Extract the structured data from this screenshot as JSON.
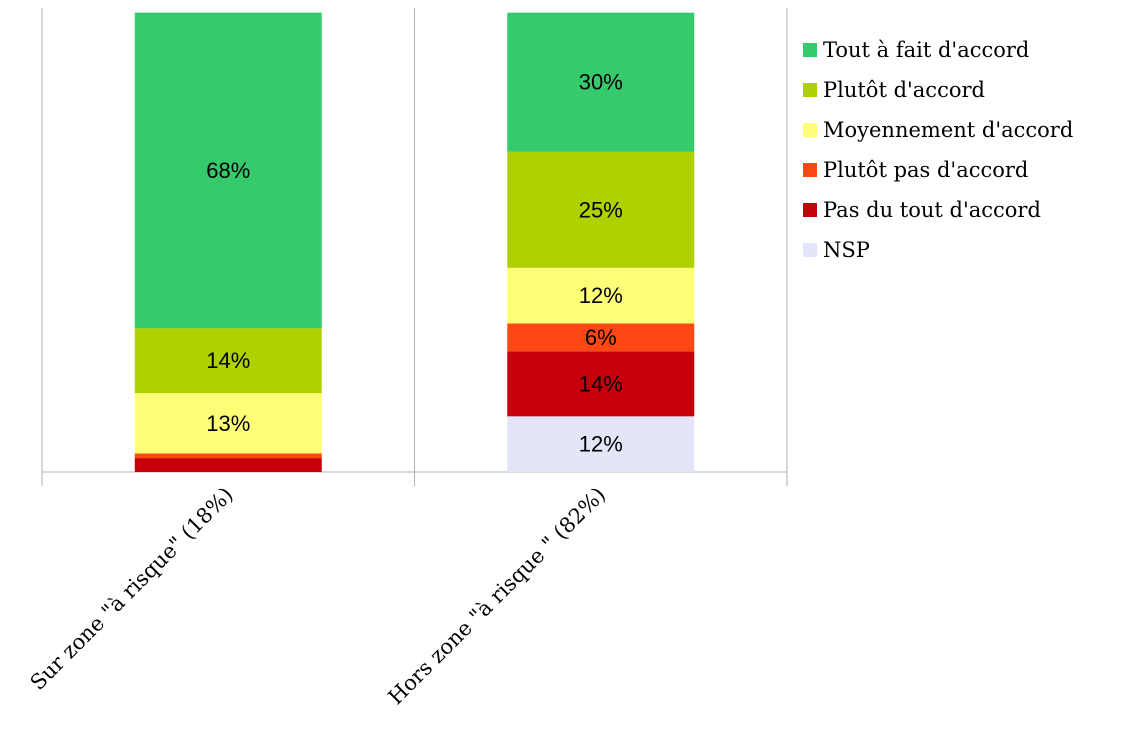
{
  "chart_data": {
    "type": "bar",
    "stacked": true,
    "percent_stacked": true,
    "categories": [
      "Sur zone \"à risque\" (18%)",
      "Hors zone \"à risque \" (82%)"
    ],
    "series": [
      {
        "name": "Tout à fait d'accord",
        "color": "#35cb6c",
        "values": [
          68,
          30
        ]
      },
      {
        "name": "Plutôt d'accord",
        "color": "#afd100",
        "values": [
          14,
          25
        ]
      },
      {
        "name": "Moyennement d'accord",
        "color": "#ffff77",
        "values": [
          13,
          12
        ]
      },
      {
        "name": "Plutôt pas d'accord",
        "color": "#ff4714",
        "values": [
          1,
          6
        ]
      },
      {
        "name": "Pas du tout d'accord",
        "color": "#c5000b",
        "values": [
          3,
          14
        ]
      },
      {
        "name": "NSP",
        "color": "#e5e5fa",
        "values": [
          0,
          12
        ]
      }
    ],
    "data_labels": [
      [
        "68%",
        "14%",
        "13%",
        "",
        "",
        ""
      ],
      [
        "30%",
        "25%",
        "12%",
        "6%",
        "14%",
        "12%"
      ]
    ],
    "ylim": [
      0,
      100
    ],
    "legend": "right",
    "grid": true
  }
}
